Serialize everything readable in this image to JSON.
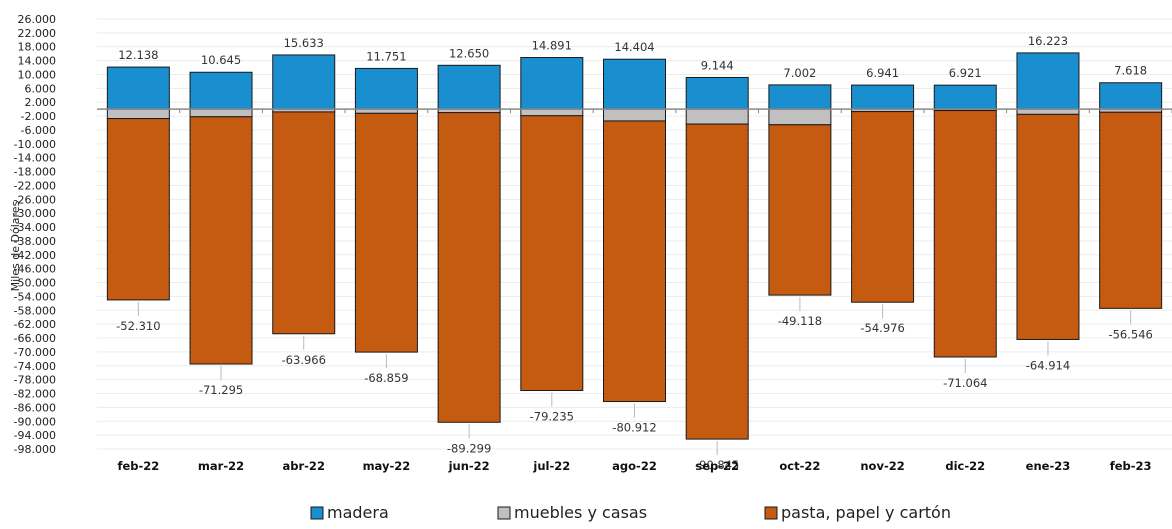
{
  "chart_data": {
    "type": "bar",
    "stacked": true,
    "ylabel": "Miles de Dólares",
    "xlabel": "",
    "ylim": [
      -98000,
      26000
    ],
    "y_ticks": [
      26000,
      22000,
      18000,
      14000,
      10000,
      6000,
      2000,
      -2000,
      -6000,
      -10000,
      -14000,
      -18000,
      -22000,
      -26000,
      -30000,
      -34000,
      -38000,
      -42000,
      -46000,
      -50000,
      -54000,
      -58000,
      -62000,
      -66000,
      -70000,
      -74000,
      -78000,
      -82000,
      -86000,
      -90000,
      -94000,
      -98000
    ],
    "y_tick_labels": [
      "26.000",
      "22.000",
      "18.000",
      "14.000",
      "10.000",
      "6.000",
      "2.000",
      "-2.000",
      "-6.000",
      "-10.000",
      "-14.000",
      "-18.000",
      "-22.000",
      "-26.000",
      "-30.000",
      "-34.000",
      "-38.000",
      "-42.000",
      "-46.000",
      "-50.000",
      "-54.000",
      "-58.000",
      "-62.000",
      "-66.000",
      "-70.000",
      "-74.000",
      "-78.000",
      "-82.000",
      "-86.000",
      "-90.000",
      "-94.000",
      "-98.000"
    ],
    "grid": true,
    "legend_position": "bottom",
    "categories": [
      "feb-22",
      "mar-22",
      "abr-22",
      "may-22",
      "jun-22",
      "jul-22",
      "ago-22",
      "sep-22",
      "oct-22",
      "nov-22",
      "dic-22",
      "ene-23",
      "feb-23"
    ],
    "series": [
      {
        "name": "madera",
        "color": "#1a8fd0",
        "values": [
          12138,
          10645,
          15633,
          11751,
          12650,
          14891,
          14404,
          9144,
          7002,
          6941,
          6921,
          16223,
          7618
        ],
        "labels": [
          "12.138",
          "10.645",
          "15.633",
          "11.751",
          "12.650",
          "14.891",
          "14.404",
          "9.144",
          "7.002",
          "6.941",
          "6.921",
          "16.223",
          "7.618"
        ]
      },
      {
        "name": "muebles y casas",
        "color": "#c0c0c0",
        "values": [
          -2700,
          -2200,
          -800,
          -1200,
          -1000,
          -1900,
          -3400,
          -4300,
          -4500,
          -700,
          -400,
          -1500,
          -900
        ]
      },
      {
        "name": "pasta, papel y cartón",
        "color": "#c55a11",
        "values": [
          -52310,
          -71295,
          -63966,
          -68859,
          -89299,
          -79235,
          -80912,
          -90845,
          -49118,
          -54976,
          -71064,
          -64914,
          -56546
        ],
        "labels": [
          "-52.310",
          "-71.295",
          "-63.966",
          "-68.859",
          "-89.299",
          "-79.235",
          "-80.912",
          "-90.845",
          "-49.118",
          "-54.976",
          "-71.064",
          "-64.914",
          "-56.546"
        ]
      }
    ]
  }
}
